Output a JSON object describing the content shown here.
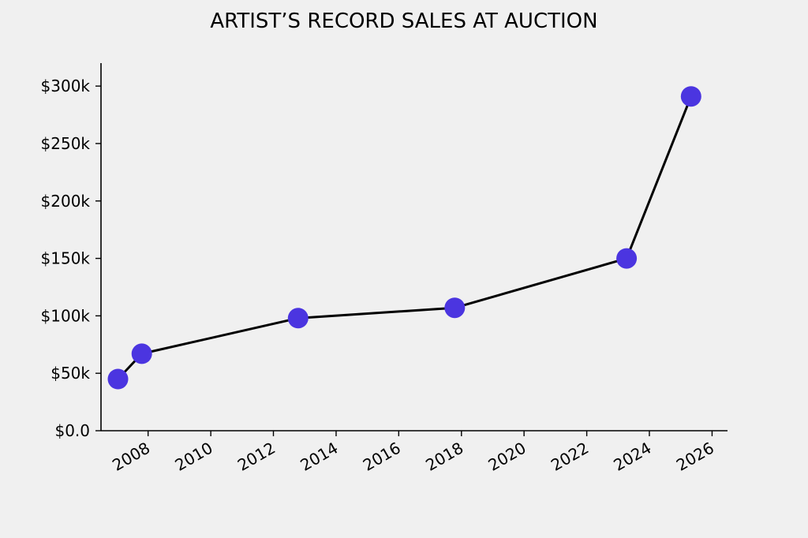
{
  "chart_data": {
    "type": "line",
    "title": "ARTIST’S RECORD SALES AT AUCTION",
    "xlabel": "",
    "ylabel": "",
    "x_axis_kind": "date",
    "xlim": [
      "2006-07-01",
      "2026-06-30"
    ],
    "ylim": [
      0,
      320000
    ],
    "y_ticks": [
      {
        "value": 0,
        "label": "$0.0"
      },
      {
        "value": 50000,
        "label": "$50k"
      },
      {
        "value": 100000,
        "label": "$100k"
      },
      {
        "value": 150000,
        "label": "$150k"
      },
      {
        "value": 200000,
        "label": "$200k"
      },
      {
        "value": 250000,
        "label": "$250k"
      },
      {
        "value": 300000,
        "label": "$300k"
      }
    ],
    "x_ticks": [
      {
        "value": "2008-01-01",
        "label": "2008"
      },
      {
        "value": "2010-01-01",
        "label": "2010"
      },
      {
        "value": "2012-01-01",
        "label": "2012"
      },
      {
        "value": "2014-01-01",
        "label": "2014"
      },
      {
        "value": "2016-01-01",
        "label": "2016"
      },
      {
        "value": "2018-01-01",
        "label": "2018"
      },
      {
        "value": "2020-01-01",
        "label": "2020"
      },
      {
        "value": "2022-01-01",
        "label": "2022"
      },
      {
        "value": "2024-01-01",
        "label": "2024"
      },
      {
        "value": "2026-01-01",
        "label": "2026"
      }
    ],
    "grid": false,
    "legend": "none",
    "series": [
      {
        "x": [
          "2007-01-15",
          "2007-10-20",
          "2012-10-15",
          "2017-10-15",
          "2023-04-10",
          "2025-05-01"
        ],
        "y": [
          45000,
          67000,
          98000,
          107000,
          150000,
          291000
        ]
      }
    ],
    "colors": {
      "line": "#000000",
      "marker": "#4b35e0",
      "background": "#f0f0f0"
    }
  }
}
